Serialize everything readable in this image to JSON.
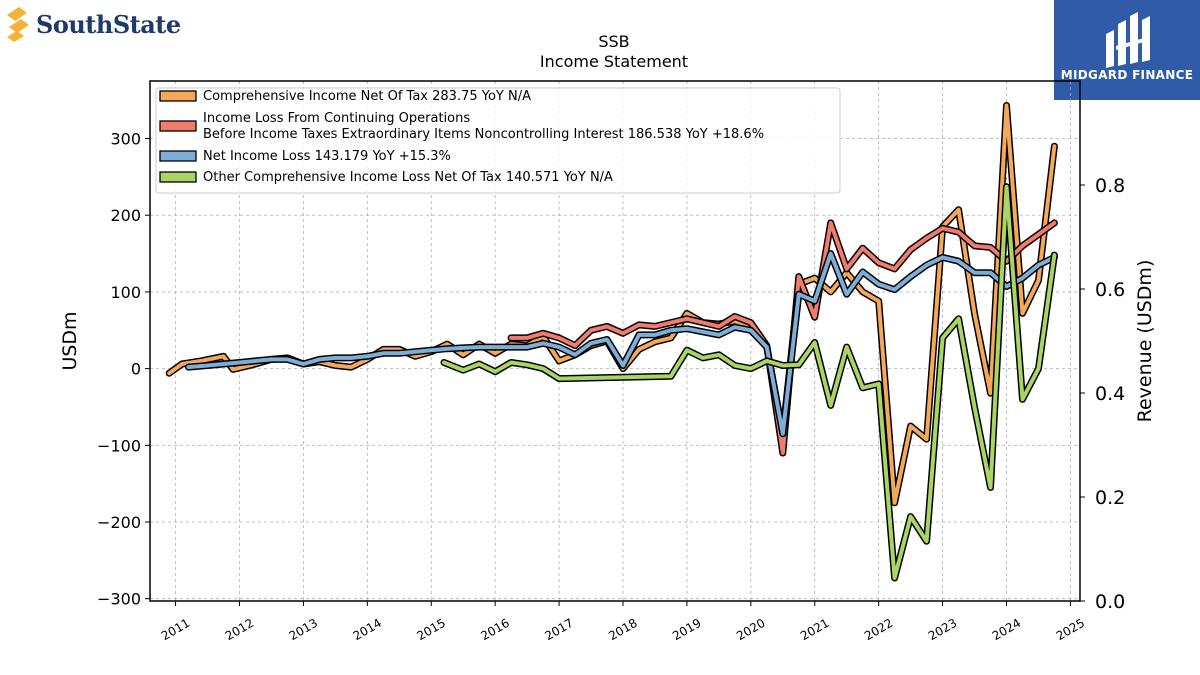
{
  "branding": {
    "left_logo": "SouthState",
    "right_logo": "MIDGARD FINANCE"
  },
  "chart_data": {
    "type": "line",
    "title": "SSB",
    "subtitle": "Income Statement",
    "ylabel": "USDm",
    "y2label": "Revenue (USDm)",
    "ylim": [
      -303,
      375
    ],
    "y2lim": [
      0,
      1.0
    ],
    "yticks": [
      -300,
      -200,
      -100,
      0,
      100,
      200,
      300
    ],
    "y2ticks": [
      0.0,
      0.2,
      0.4,
      0.6,
      0.8
    ],
    "y2ticklabels": [
      "0.0",
      "0.2",
      "0.4",
      "0.6",
      "0.8"
    ],
    "xlim": [
      2010.6,
      2025.15
    ],
    "xticks": [
      2011,
      2012,
      2013,
      2014,
      2015,
      2016,
      2017,
      2018,
      2019,
      2020,
      2021,
      2022,
      2023,
      2024,
      2025
    ],
    "grid": true,
    "legend_position": "top-left",
    "series": [
      {
        "name": "Comprehensive Income Net Of Tax  283.75 YoY N/A",
        "color": "#f5a75a",
        "points": [
          [
            2010.9,
            -6
          ],
          [
            2011.1,
            6
          ],
          [
            2011.4,
            10
          ],
          [
            2011.75,
            16
          ],
          [
            2011.9,
            -1
          ],
          [
            2012.2,
            5
          ],
          [
            2012.5,
            12
          ],
          [
            2012.75,
            14
          ],
          [
            2013.0,
            6
          ],
          [
            2013.25,
            9
          ],
          [
            2013.5,
            4
          ],
          [
            2013.75,
            2
          ],
          [
            2014.0,
            12
          ],
          [
            2014.25,
            25
          ],
          [
            2014.5,
            25
          ],
          [
            2014.75,
            16
          ],
          [
            2015.0,
            22
          ],
          [
            2015.25,
            32
          ],
          [
            2015.5,
            18
          ],
          [
            2015.75,
            32
          ],
          [
            2016.0,
            20
          ],
          [
            2016.25,
            32
          ],
          [
            2016.5,
            30
          ],
          [
            2016.75,
            42
          ],
          [
            2017.0,
            10
          ],
          [
            2017.25,
            18
          ],
          [
            2017.5,
            30
          ],
          [
            2017.75,
            36
          ],
          [
            2018.0,
            0
          ],
          [
            2018.25,
            25
          ],
          [
            2018.5,
            35
          ],
          [
            2018.75,
            40
          ],
          [
            2019.0,
            72
          ],
          [
            2019.25,
            60
          ],
          [
            2019.5,
            58
          ],
          [
            2019.75,
            62
          ],
          [
            2020.0,
            55
          ],
          [
            2020.25,
            28
          ],
          [
            2020.5,
            -85
          ],
          [
            2020.75,
            110
          ],
          [
            2021.0,
            118
          ],
          [
            2021.25,
            100
          ],
          [
            2021.5,
            125
          ],
          [
            2021.75,
            100
          ],
          [
            2022.0,
            88
          ],
          [
            2022.25,
            -175
          ],
          [
            2022.5,
            -75
          ],
          [
            2022.75,
            -92
          ],
          [
            2023.0,
            185
          ],
          [
            2023.25,
            207
          ],
          [
            2023.5,
            72
          ],
          [
            2023.75,
            -32
          ],
          [
            2024.0,
            343
          ],
          [
            2024.25,
            72
          ],
          [
            2024.5,
            115
          ],
          [
            2024.75,
            290
          ]
        ]
      },
      {
        "name": "Income Loss From Continuing Operations Before Income Taxes Extraordinary Items Noncontrolling Interest  186.538 YoY +18.6%",
        "label_lines": [
          "Income Loss From Continuing Operations",
          "Before Income Taxes Extraordinary Items Noncontrolling Interest  186.538 YoY +18.6%"
        ],
        "color": "#f27c6c",
        "points": [
          [
            2016.25,
            40
          ],
          [
            2016.5,
            40
          ],
          [
            2016.75,
            46
          ],
          [
            2017.0,
            40
          ],
          [
            2017.25,
            30
          ],
          [
            2017.5,
            50
          ],
          [
            2017.75,
            55
          ],
          [
            2018.0,
            46
          ],
          [
            2018.25,
            57
          ],
          [
            2018.5,
            55
          ],
          [
            2018.75,
            60
          ],
          [
            2019.0,
            65
          ],
          [
            2019.25,
            60
          ],
          [
            2019.5,
            55
          ],
          [
            2019.75,
            68
          ],
          [
            2020.0,
            60
          ],
          [
            2020.25,
            30
          ],
          [
            2020.5,
            -110
          ],
          [
            2020.75,
            120
          ],
          [
            2021.0,
            67
          ],
          [
            2021.25,
            190
          ],
          [
            2021.5,
            130
          ],
          [
            2021.75,
            157
          ],
          [
            2022.0,
            138
          ],
          [
            2022.25,
            130
          ],
          [
            2022.5,
            155
          ],
          [
            2022.75,
            170
          ],
          [
            2023.0,
            183
          ],
          [
            2023.25,
            178
          ],
          [
            2023.5,
            160
          ],
          [
            2023.75,
            158
          ],
          [
            2024.0,
            140
          ],
          [
            2024.25,
            160
          ],
          [
            2024.5,
            175
          ],
          [
            2024.75,
            190
          ]
        ]
      },
      {
        "name": "Net Income Loss  143.179 YoY +15.3%",
        "color": "#7daed8",
        "points": [
          [
            2011.2,
            2
          ],
          [
            2011.5,
            4
          ],
          [
            2011.75,
            6
          ],
          [
            2012.0,
            8
          ],
          [
            2012.25,
            10
          ],
          [
            2012.5,
            12
          ],
          [
            2012.75,
            12
          ],
          [
            2013.0,
            6
          ],
          [
            2013.25,
            12
          ],
          [
            2013.5,
            14
          ],
          [
            2013.75,
            14
          ],
          [
            2014.0,
            16
          ],
          [
            2014.25,
            20
          ],
          [
            2014.5,
            20
          ],
          [
            2014.75,
            22
          ],
          [
            2015.0,
            24
          ],
          [
            2015.25,
            26
          ],
          [
            2015.5,
            27
          ],
          [
            2015.75,
            28
          ],
          [
            2016.0,
            28
          ],
          [
            2016.25,
            28
          ],
          [
            2016.5,
            28
          ],
          [
            2016.75,
            33
          ],
          [
            2017.0,
            28
          ],
          [
            2017.25,
            18
          ],
          [
            2017.5,
            33
          ],
          [
            2017.75,
            38
          ],
          [
            2018.0,
            4
          ],
          [
            2018.25,
            44
          ],
          [
            2018.5,
            44
          ],
          [
            2018.75,
            50
          ],
          [
            2019.0,
            52
          ],
          [
            2019.25,
            48
          ],
          [
            2019.5,
            44
          ],
          [
            2019.75,
            54
          ],
          [
            2020.0,
            50
          ],
          [
            2020.25,
            28
          ],
          [
            2020.5,
            -85
          ],
          [
            2020.75,
            97
          ],
          [
            2021.0,
            88
          ],
          [
            2021.25,
            150
          ],
          [
            2021.5,
            97
          ],
          [
            2021.75,
            126
          ],
          [
            2022.0,
            110
          ],
          [
            2022.25,
            103
          ],
          [
            2022.5,
            120
          ],
          [
            2022.75,
            135
          ],
          [
            2023.0,
            145
          ],
          [
            2023.25,
            140
          ],
          [
            2023.5,
            125
          ],
          [
            2023.75,
            125
          ],
          [
            2024.0,
            107
          ],
          [
            2024.25,
            118
          ],
          [
            2024.5,
            135
          ],
          [
            2024.75,
            145
          ]
        ]
      },
      {
        "name": "Other Comprehensive Income Loss Net Of Tax  140.571 YoY N/A",
        "color": "#a8d564",
        "points": [
          [
            2015.2,
            8
          ],
          [
            2015.5,
            -2
          ],
          [
            2015.75,
            6
          ],
          [
            2016.0,
            -4
          ],
          [
            2016.25,
            8
          ],
          [
            2016.5,
            5
          ],
          [
            2016.75,
            0
          ],
          [
            2017.0,
            -13
          ],
          [
            2018.75,
            -10
          ],
          [
            2019.0,
            24
          ],
          [
            2019.25,
            14
          ],
          [
            2019.5,
            18
          ],
          [
            2019.75,
            4
          ],
          [
            2020.0,
            0
          ],
          [
            2020.25,
            10
          ],
          [
            2020.5,
            4
          ],
          [
            2020.75,
            5
          ],
          [
            2021.0,
            34
          ],
          [
            2021.25,
            -48
          ],
          [
            2021.5,
            28
          ],
          [
            2021.75,
            -25
          ],
          [
            2022.0,
            -20
          ],
          [
            2022.25,
            -273
          ],
          [
            2022.5,
            -193
          ],
          [
            2022.75,
            -225
          ],
          [
            2023.0,
            40
          ],
          [
            2023.25,
            65
          ],
          [
            2023.5,
            -50
          ],
          [
            2023.75,
            -155
          ],
          [
            2024.0,
            237
          ],
          [
            2024.25,
            -40
          ],
          [
            2024.5,
            0
          ],
          [
            2024.75,
            148
          ]
        ]
      }
    ]
  }
}
